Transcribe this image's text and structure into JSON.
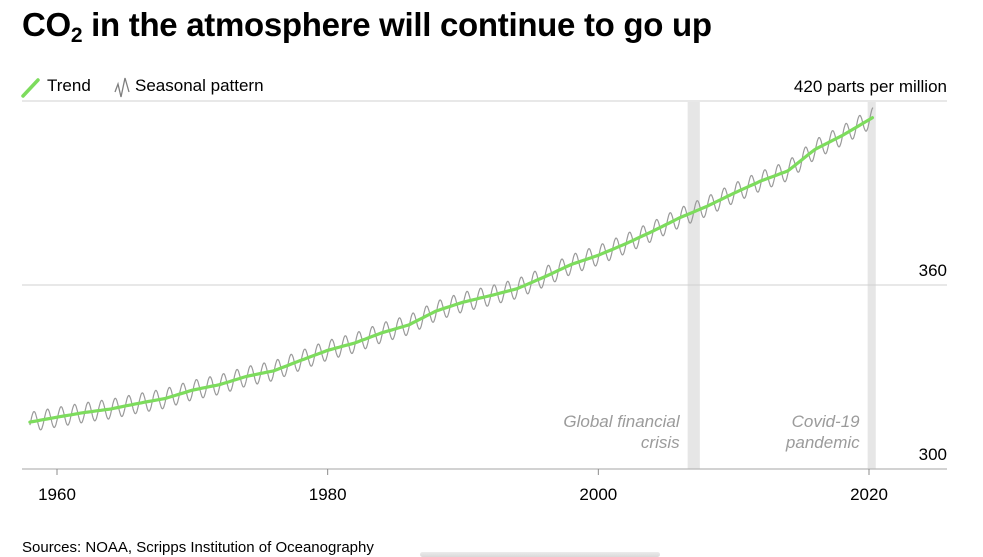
{
  "title": {
    "prefix": "CO",
    "subscript": "2",
    "suffix": " in the atmosphere will continue to go up"
  },
  "source": "Sources: NOAA, Scripps Institution of Oceanography",
  "colors": {
    "trend": "#7ddc5d",
    "seasonal": "#9a9a9a",
    "band": "#e6e6e6",
    "grid": "#d0d0d0",
    "axis": "#b8b8b8",
    "annotation": "#9b9b9b"
  },
  "chart_data": {
    "type": "line",
    "title": "CO2 in the atmosphere will continue to go up",
    "xlabel": "",
    "ylabel": "parts per million",
    "xlim": [
      1958,
      2024
    ],
    "ylim": [
      300,
      420
    ],
    "x_ticks": [
      {
        "value": 1960,
        "label": "1960"
      },
      {
        "value": 1980,
        "label": "1980"
      },
      {
        "value": 2000,
        "label": "2000"
      },
      {
        "value": 2020,
        "label": "2020"
      }
    ],
    "y_ticks": [
      {
        "value": 420,
        "label": "420 parts per million"
      },
      {
        "value": 360,
        "label": "360"
      },
      {
        "value": 300,
        "label": "300"
      }
    ],
    "legend": [
      {
        "key": "trend",
        "label": "Trend"
      },
      {
        "key": "seasonal",
        "label": "Seasonal pattern"
      }
    ],
    "legend_position": "top-left",
    "seasonal_amplitude_ppm": 3.2,
    "series": [
      {
        "name": "Trend",
        "key": "trend",
        "x": [
          1958,
          1960,
          1962,
          1964,
          1966,
          1968,
          1970,
          1972,
          1974,
          1976,
          1978,
          1980,
          1982,
          1984,
          1986,
          1988,
          1990,
          1992,
          1994,
          1996,
          1998,
          2000,
          2002,
          2004,
          2006,
          2008,
          2010,
          2012,
          2014,
          2016,
          2018,
          2020
        ],
        "values": [
          315.3,
          316.9,
          318.4,
          319.6,
          321.4,
          323.0,
          325.7,
          327.5,
          330.2,
          332.0,
          335.4,
          338.7,
          341.1,
          344.4,
          347.0,
          351.5,
          354.4,
          356.5,
          358.8,
          362.6,
          366.7,
          369.7,
          373.4,
          377.5,
          381.9,
          385.6,
          389.9,
          393.9,
          397.2,
          404.2,
          408.7,
          413.9
        ]
      },
      {
        "name": "Seasonal pattern",
        "key": "seasonal",
        "derived_from": "Trend"
      }
    ],
    "bands": [
      {
        "x0": 2006.6,
        "x1": 2007.5,
        "label_lines": [
          "Global financial",
          "crisis"
        ]
      },
      {
        "x0": 2019.9,
        "x1": 2020.5,
        "label_lines": [
          "Covid-19",
          "pandemic"
        ]
      }
    ]
  }
}
